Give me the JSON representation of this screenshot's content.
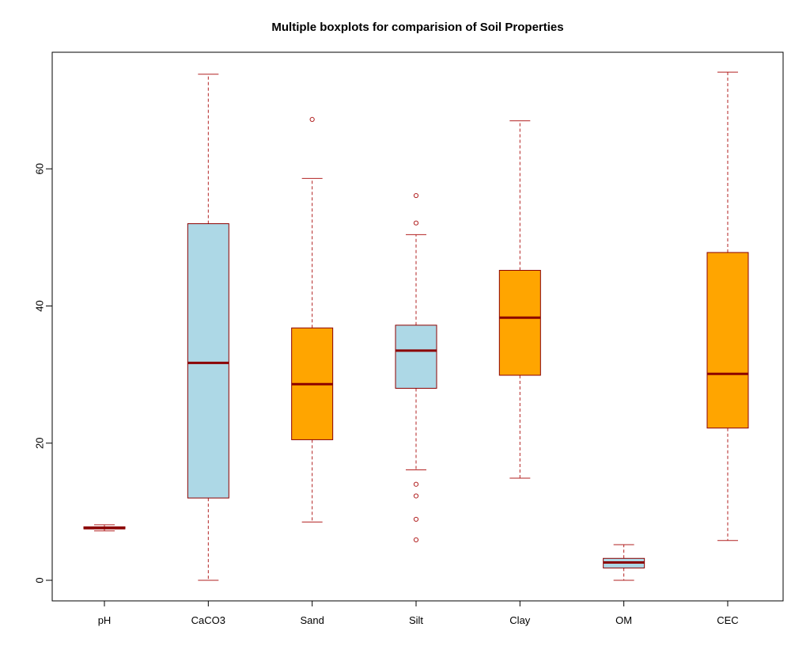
{
  "chart_data": {
    "type": "boxplot",
    "title": "Multiple boxplots for comparision of Soil Properties",
    "xlabel": "",
    "ylabel": "",
    "ylim": [
      -3,
      77
    ],
    "yticks": [
      0,
      20,
      40,
      60
    ],
    "categories": [
      "pH",
      "CaCO3",
      "Sand",
      "Silt",
      "Clay",
      "OM",
      "CEC"
    ],
    "boxes": [
      {
        "name": "pH",
        "whisker_low": 7.2,
        "q1": 7.5,
        "median": 7.6,
        "q3": 7.8,
        "whisker_high": 8.1,
        "outliers": [],
        "fill": "lightblue"
      },
      {
        "name": "CaCO3",
        "whisker_low": 0,
        "q1": 12.0,
        "median": 31.7,
        "q3": 52.0,
        "whisker_high": 73.8,
        "outliers": [],
        "fill": "lightblue"
      },
      {
        "name": "Sand",
        "whisker_low": 8.5,
        "q1": 20.5,
        "median": 28.6,
        "q3": 36.8,
        "whisker_high": 58.6,
        "outliers": [
          67.2
        ],
        "fill": "orange"
      },
      {
        "name": "Silt",
        "whisker_low": 16.1,
        "q1": 28.0,
        "median": 33.5,
        "q3": 37.2,
        "whisker_high": 50.4,
        "outliers": [
          52.1,
          56.1,
          14.0,
          12.3,
          8.9,
          5.9
        ],
        "fill": "lightblue"
      },
      {
        "name": "Clay",
        "whisker_low": 14.9,
        "q1": 29.9,
        "median": 38.3,
        "q3": 45.2,
        "whisker_high": 67.0,
        "outliers": [],
        "fill": "orange"
      },
      {
        "name": "OM",
        "whisker_low": 0,
        "q1": 1.8,
        "median": 2.6,
        "q3": 3.2,
        "whisker_high": 5.2,
        "outliers": [],
        "fill": "lightblue"
      },
      {
        "name": "CEC",
        "whisker_low": 5.8,
        "q1": 22.2,
        "median": 30.1,
        "q3": 47.8,
        "whisker_high": 74.1,
        "outliers": [],
        "fill": "orange"
      }
    ],
    "grid": false,
    "legend": "none"
  },
  "colors": {
    "border": "#8b0000",
    "whisker": "#b22222",
    "lightblue": "#add8e6",
    "orange": "#ffa500",
    "axis": "#000000"
  }
}
